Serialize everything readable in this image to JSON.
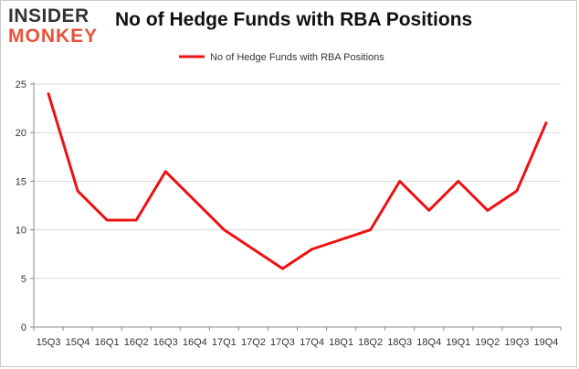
{
  "logo": {
    "line1": "INSIDER",
    "line2": "MONKEY"
  },
  "chart_data": {
    "type": "line",
    "title": "No of Hedge Funds with RBA Positions",
    "xlabel": "",
    "ylabel": "",
    "categories": [
      "15Q3",
      "15Q4",
      "16Q1",
      "16Q2",
      "16Q3",
      "16Q4",
      "17Q1",
      "17Q2",
      "17Q3",
      "17Q4",
      "18Q1",
      "18Q2",
      "18Q3",
      "18Q4",
      "19Q1",
      "19Q2",
      "19Q3",
      "19Q4"
    ],
    "series": [
      {
        "name": "No of Hedge Funds with RBA Positions",
        "values": [
          24,
          14,
          11,
          11,
          16,
          13,
          10,
          8,
          6,
          8,
          9,
          10,
          15,
          12,
          15,
          12,
          14,
          21
        ],
        "color": "#ee1111"
      }
    ],
    "ylim": [
      0,
      25
    ],
    "yticks": [
      0,
      5,
      10,
      15,
      20,
      25
    ],
    "grid": true,
    "legend": "top-center"
  }
}
